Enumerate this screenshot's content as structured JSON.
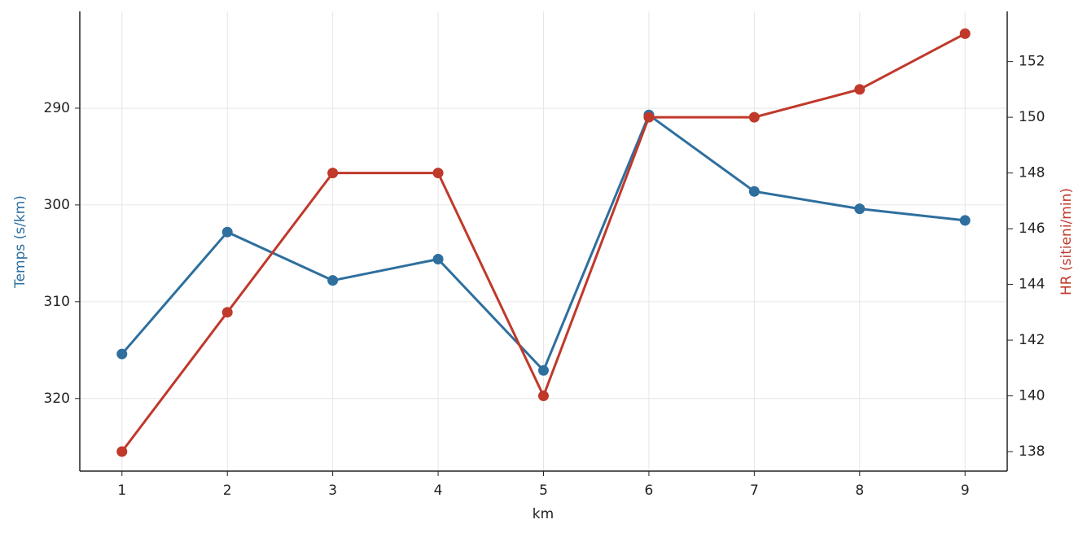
{
  "chart_data": {
    "type": "line",
    "x": [
      1,
      2,
      3,
      4,
      5,
      6,
      7,
      8,
      9
    ],
    "xlabel": "km",
    "xlim": [
      0.6,
      9.4
    ],
    "xticks": [
      1,
      2,
      3,
      4,
      5,
      6,
      7,
      8,
      9
    ],
    "ylabel": "Temps (s/km)",
    "ylim": [
      280,
      327.5
    ],
    "y_inverted": true,
    "yticks": [
      290,
      300,
      310,
      320
    ],
    "y2label": "HR (sitieni/min)",
    "y2lim": [
      137.3,
      153.8
    ],
    "y2ticks": [
      138,
      140,
      142,
      144,
      146,
      148,
      150,
      152
    ],
    "grid": true,
    "series": [
      {
        "color": "#2e6f9e",
        "values": [
          315.4,
          302.8,
          307.8,
          305.6,
          317.1,
          290.7,
          298.6,
          300.4,
          301.6
        ]
      },
      {
        "color": "#c0392b",
        "axis": "y2",
        "values": [
          138,
          143,
          148,
          148,
          140,
          150,
          150,
          151,
          153
        ]
      }
    ]
  }
}
